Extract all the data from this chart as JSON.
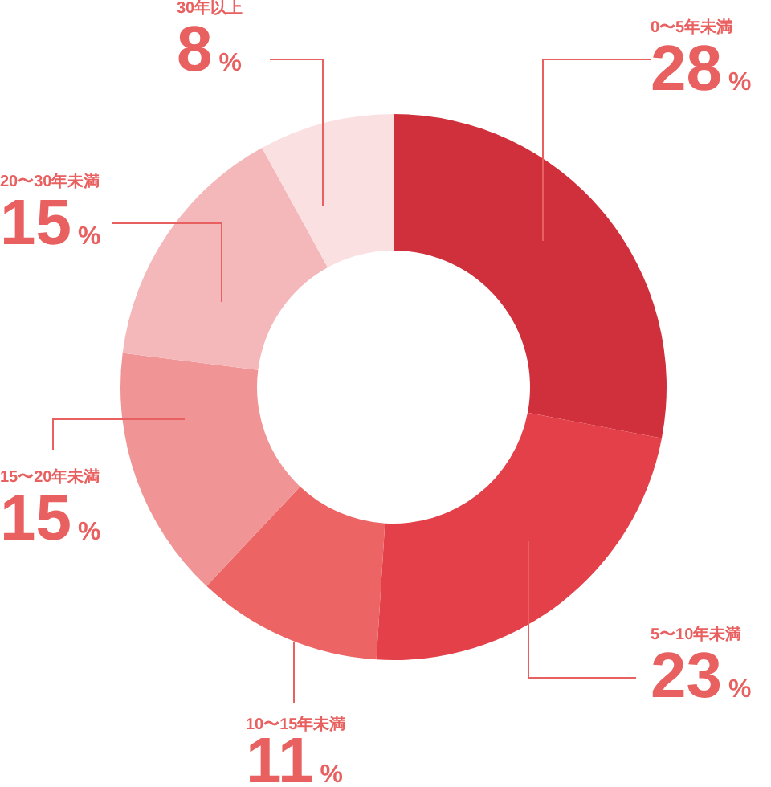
{
  "chart_data": {
    "type": "donut",
    "categories": [
      "0〜5年未満",
      "5〜10年未満",
      "10〜15年未満",
      "15〜20年未満",
      "20〜30年未満",
      "30年以上"
    ],
    "values": [
      28,
      23,
      11,
      15,
      15,
      8
    ],
    "value_labels": [
      "28%",
      "23%",
      "11%",
      "15%",
      "15%",
      "8%"
    ],
    "colors": [
      "#d0303b",
      "#e34049",
      "#ec6463",
      "#f09495",
      "#f4b8ba",
      "#fbe0e2"
    ]
  }
}
